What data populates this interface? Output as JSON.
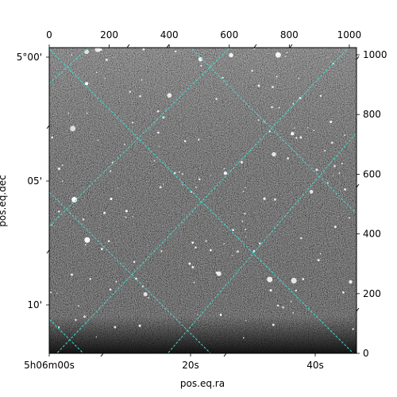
{
  "chart_data": {
    "type": "heatmap",
    "description_colormap": "grayscale",
    "xlabel": "pos.eq.ra",
    "ylabel": "pos.eq.dec",
    "pixel_axes": {
      "x": {
        "range": [
          0,
          1024
        ],
        "ticks": [
          0,
          200,
          400,
          600,
          800,
          1000
        ]
      },
      "y": {
        "range": [
          0,
          1024
        ],
        "ticks": [
          0,
          200,
          400,
          600,
          800,
          1000
        ]
      }
    },
    "world_ticks": {
      "ra": [
        "5h06m00s",
        "20s",
        "40s"
      ],
      "dec": [
        "5°00'",
        "05'",
        "10'"
      ]
    },
    "grid_color": "#40e0d0",
    "grid": true
  }
}
